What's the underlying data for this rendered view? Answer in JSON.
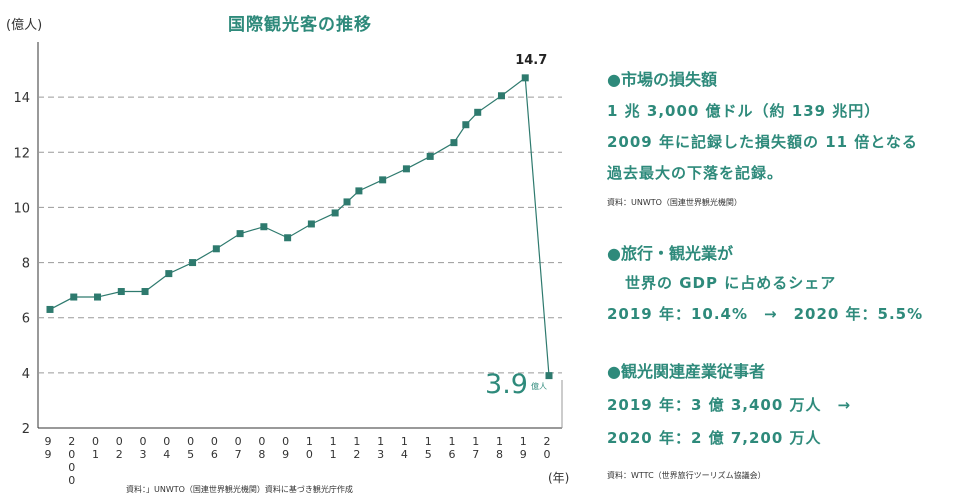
{
  "chart_data": {
    "type": "line",
    "title": "国際観光客の推移",
    "ylabel": "(億人)",
    "xlabel": "(年)",
    "ylim": [
      2,
      16
    ],
    "yticks": [
      2,
      4,
      6,
      8,
      10,
      12,
      14
    ],
    "grid": true,
    "x_labels": [
      "9\n9",
      "2\n0\n0\n0",
      "0\n1",
      "0\n2",
      "0\n3",
      "0\n4",
      "0\n5",
      "0\n6",
      "0\n7",
      "0\n8",
      "0\n9",
      "1\n0",
      "1\n1",
      "1\n2",
      "1\n3",
      "1\n4",
      "1\n5",
      "1\n6",
      "1\n7",
      "1\n8",
      "1\n9",
      "2\n0"
    ],
    "values": [
      6.3,
      6.75,
      6.75,
      6.95,
      6.95,
      7.6,
      8.0,
      8.5,
      9.05,
      9.3,
      8.9,
      9.4,
      9.8,
      10.2,
      10.6,
      11.0,
      11.4,
      11.85,
      12.35,
      13.0,
      13.45,
      14.05,
      14.7,
      3.9
    ],
    "x_positions": [
      1999,
      2000,
      2001,
      2002,
      2003,
      2004,
      2005,
      2006,
      2007,
      2008,
      2009,
      2010,
      2011,
      2011.5,
      2012,
      2013,
      2014,
      2015,
      2016,
      2016.5,
      2017,
      2018,
      2019,
      2020
    ],
    "annotations": [
      {
        "text": "14.7",
        "at_year": 2019
      },
      {
        "text": "3.9",
        "unit": "億人",
        "at_year": 2020
      }
    ],
    "line_color": "#2e7a6e",
    "marker_color": "#2e7a6e"
  },
  "source_left": "資料：」UNWTO（国連世界観光機関）資料に基づき観光庁作成",
  "panel": {
    "s1": {
      "head": "●市場の損失額",
      "lines": [
        "1 兆 3,000 億ドル（約 139 兆円）",
        "2009 年に記録した損失額の 11 倍となる",
        "過去最大の下落を記録。"
      ],
      "source": "資料：UNWTO（国連世界観光機関）"
    },
    "s2": {
      "head": "●旅行・観光業が",
      "line1": "世界の GDP に占めるシェア",
      "line2": "2019 年：10.4%　→　2020 年：5.5%"
    },
    "s3": {
      "head": "●観光関連産業従事者",
      "line1": "2019 年：3 億 3,400 万人　→",
      "line2": "2020 年：2 億 7,200 万人",
      "source": "資料：WTTC（世界旅行ツーリズム協議会）"
    }
  }
}
